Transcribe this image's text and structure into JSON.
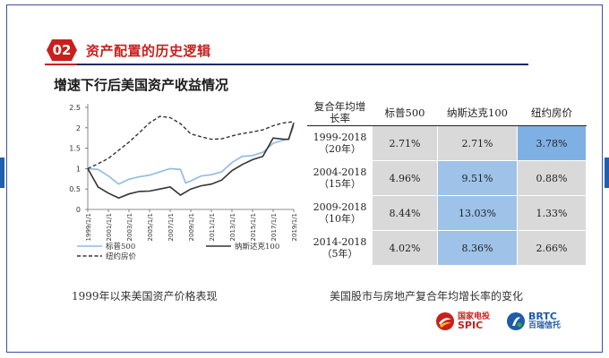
{
  "slide": {
    "badge": "02",
    "section_title": "资产配置的历史逻辑",
    "subtitle": "增速下行后美国资产收益情况",
    "caption_left": "1999年以来美国资产价格表现",
    "caption_right": "美国股市与房地产复合年均增长率的变化"
  },
  "logos": {
    "spic_cn": "国家电投",
    "spic_en": "SPIC",
    "brtc_en": "BRTC",
    "brtc_cn": "百瑞信托"
  },
  "colors": {
    "brand_red": "#c8201e",
    "navy": "#1d2a6b",
    "sp500": "#8db9e6",
    "nasdaq": "#333333",
    "housing": "#333333"
  },
  "chart_data": {
    "type": "line",
    "x": [
      "1999/1/1",
      "2001/1/1",
      "2003/1/1",
      "2005/1/1",
      "2007/1/1",
      "2009/1/1",
      "2011/1/1",
      "2013/1/1",
      "2015/1/1",
      "2017/1/1",
      "2019/1/1"
    ],
    "x_tick_labels": [
      "1999/1/1",
      "2001/1/1",
      "2003/1/1",
      "2005/1/1",
      "2007/1/1",
      "2009/1/1",
      "2011/1/1",
      "2013/1/1",
      "2015/1/1",
      "2017/1/1",
      "2019/1/1"
    ],
    "ylim": [
      0,
      2.5
    ],
    "yticks": [
      "0",
      "0.5",
      "1",
      "1.5",
      "2",
      "2.5"
    ],
    "series": [
      {
        "name": "标普500",
        "style": "solid",
        "color": "#8db9e6",
        "points": [
          [
            1999.0,
            1.0
          ],
          [
            2000.0,
            0.98
          ],
          [
            2001.0,
            0.82
          ],
          [
            2002.0,
            0.62
          ],
          [
            2003.0,
            0.74
          ],
          [
            2004.0,
            0.8
          ],
          [
            2005.0,
            0.84
          ],
          [
            2006.0,
            0.92
          ],
          [
            2007.0,
            1.0
          ],
          [
            2008.0,
            0.98
          ],
          [
            2008.5,
            0.65
          ],
          [
            2009.0,
            0.7
          ],
          [
            2010.0,
            0.82
          ],
          [
            2011.0,
            0.85
          ],
          [
            2012.0,
            0.92
          ],
          [
            2013.0,
            1.15
          ],
          [
            2014.0,
            1.3
          ],
          [
            2015.0,
            1.32
          ],
          [
            2016.0,
            1.4
          ],
          [
            2017.0,
            1.62
          ],
          [
            2018.0,
            1.7
          ],
          [
            2018.5,
            1.72
          ],
          [
            2019.0,
            2.05
          ]
        ]
      },
      {
        "name": "纳斯达克100",
        "style": "solid",
        "color": "#333333",
        "points": [
          [
            1999.0,
            1.0
          ],
          [
            2000.0,
            0.55
          ],
          [
            2001.0,
            0.4
          ],
          [
            2002.0,
            0.28
          ],
          [
            2003.0,
            0.38
          ],
          [
            2004.0,
            0.44
          ],
          [
            2005.0,
            0.45
          ],
          [
            2006.0,
            0.5
          ],
          [
            2007.0,
            0.55
          ],
          [
            2008.0,
            0.35
          ],
          [
            2009.0,
            0.5
          ],
          [
            2010.0,
            0.58
          ],
          [
            2011.0,
            0.62
          ],
          [
            2012.0,
            0.72
          ],
          [
            2013.0,
            0.95
          ],
          [
            2014.0,
            1.1
          ],
          [
            2015.0,
            1.22
          ],
          [
            2016.0,
            1.3
          ],
          [
            2017.0,
            1.75
          ],
          [
            2018.0,
            1.72
          ],
          [
            2018.5,
            1.72
          ],
          [
            2019.0,
            2.12
          ]
        ]
      },
      {
        "name": "纽约房价",
        "style": "dashed",
        "color": "#333333",
        "points": [
          [
            1999.0,
            1.0
          ],
          [
            2000.0,
            1.12
          ],
          [
            2001.0,
            1.25
          ],
          [
            2002.0,
            1.45
          ],
          [
            2003.0,
            1.65
          ],
          [
            2004.0,
            1.88
          ],
          [
            2005.0,
            2.12
          ],
          [
            2006.0,
            2.28
          ],
          [
            2007.0,
            2.25
          ],
          [
            2008.0,
            2.1
          ],
          [
            2009.0,
            1.85
          ],
          [
            2010.0,
            1.78
          ],
          [
            2011.0,
            1.72
          ],
          [
            2012.0,
            1.73
          ],
          [
            2013.0,
            1.8
          ],
          [
            2014.0,
            1.86
          ],
          [
            2015.0,
            1.9
          ],
          [
            2016.0,
            1.95
          ],
          [
            2017.0,
            2.05
          ],
          [
            2018.0,
            2.12
          ],
          [
            2019.0,
            2.15
          ]
        ]
      }
    ],
    "legend": {
      "placement": "bottom-left"
    }
  },
  "table": {
    "header": [
      "复合年均增长率",
      "标普500",
      "纳斯达克100",
      "纽约房价"
    ],
    "rows": [
      {
        "period": "1999-2018（20年）",
        "values": [
          "2.71%",
          "2.71%",
          "3.78%"
        ]
      },
      {
        "period": "2004-2018（15年）",
        "values": [
          "4.96%",
          "9.51%",
          "0.88%"
        ]
      },
      {
        "period": "2009-2018（10年）",
        "values": [
          "8.44%",
          "13.03%",
          "1.33%"
        ]
      },
      {
        "period": "2014-2018（5年）",
        "values": [
          "4.02%",
          "8.36%",
          "2.66%"
        ]
      }
    ]
  }
}
